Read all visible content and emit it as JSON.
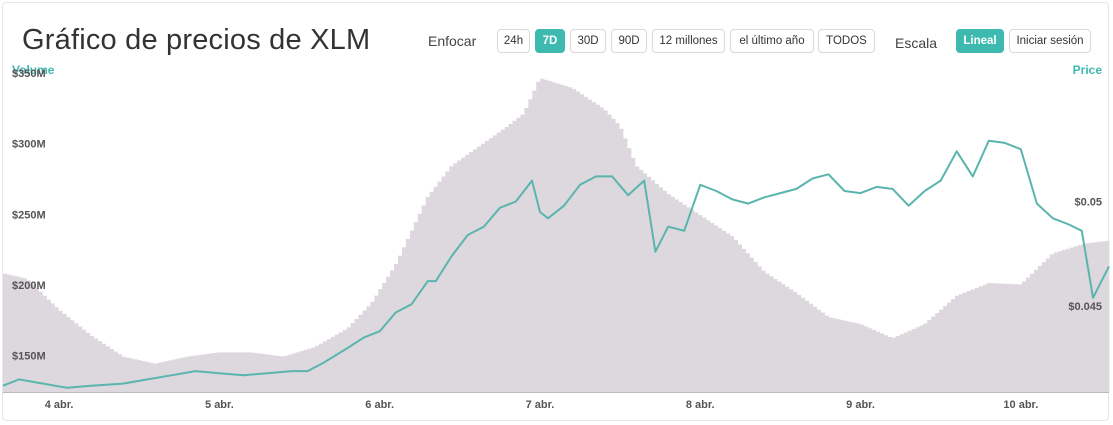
{
  "header": {
    "title": "Gráfico de precios de XLM",
    "zoom_label": "Enfocar",
    "zoom_options": [
      "24h",
      "7D",
      "30D",
      "90D",
      "12 millones",
      "el último año",
      "TODOS"
    ],
    "zoom_active": "7D",
    "scale_label": "Escala",
    "scale_options": [
      "Lineal",
      "Iniciar sesión"
    ],
    "scale_active": "Lineal"
  },
  "colors": {
    "accent": "#3db9b0",
    "volume": "#ddd7de",
    "line": "#5ab5ad"
  },
  "chart_data": {
    "type": "line",
    "left_axis_title": "Volume",
    "right_axis_title": "Price",
    "x_ticks": [
      "4 abr.",
      "5 abr.",
      "6 abr.",
      "7 abr.",
      "8 abr.",
      "9 abr.",
      "10 abr."
    ],
    "xlim": [
      3.65,
      10.55
    ],
    "y_left": {
      "ylim": [
        130,
        352
      ],
      "ticks": [
        150,
        200,
        250,
        300,
        350
      ],
      "tick_labels": [
        "$150M",
        "$200M",
        "$250M",
        "$300M",
        "$350M"
      ]
    },
    "y_right": {
      "ylim": [
        0.0409,
        0.0559
      ],
      "ticks": [
        0.045,
        0.05
      ],
      "tick_labels": [
        "$0.045",
        "$0.05"
      ]
    },
    "series": [
      {
        "name": "Volume",
        "type": "bar",
        "x": [
          3.65,
          3.8,
          4.0,
          4.2,
          4.4,
          4.6,
          4.8,
          5.0,
          5.2,
          5.4,
          5.6,
          5.8,
          5.95,
          6.1,
          6.3,
          6.45,
          6.6,
          6.8,
          6.9,
          7.0,
          7.2,
          7.4,
          7.5,
          7.6,
          7.8,
          8.0,
          8.2,
          8.4,
          8.6,
          8.8,
          9.0,
          9.2,
          9.4,
          9.6,
          9.8,
          10.0,
          10.2,
          10.4,
          10.55
        ],
        "values": [
          214,
          210,
          188,
          170,
          155,
          150,
          155,
          158,
          158,
          155,
          162,
          175,
          193,
          220,
          268,
          290,
          302,
          318,
          327,
          352,
          345,
          330,
          318,
          290,
          270,
          255,
          240,
          215,
          200,
          183,
          178,
          168,
          178,
          198,
          207,
          206,
          228,
          235,
          237
        ]
      },
      {
        "name": "Price",
        "type": "line",
        "x": [
          3.65,
          3.75,
          3.9,
          4.05,
          4.2,
          4.4,
          4.55,
          4.7,
          4.85,
          5.0,
          5.15,
          5.3,
          5.45,
          5.55,
          5.65,
          5.8,
          5.9,
          6.0,
          6.1,
          6.2,
          6.3,
          6.35,
          6.45,
          6.55,
          6.65,
          6.75,
          6.85,
          6.95,
          7.0,
          7.05,
          7.15,
          7.25,
          7.35,
          7.45,
          7.55,
          7.65,
          7.72,
          7.8,
          7.9,
          8.0,
          8.1,
          8.2,
          8.3,
          8.4,
          8.5,
          8.6,
          8.7,
          8.8,
          8.9,
          9.0,
          9.1,
          9.2,
          9.3,
          9.4,
          9.5,
          9.6,
          9.7,
          9.8,
          9.9,
          10.0,
          10.1,
          10.2,
          10.3,
          10.38,
          10.45,
          10.55
        ],
        "values": [
          0.0412,
          0.0415,
          0.0413,
          0.0411,
          0.0412,
          0.0413,
          0.0415,
          0.0417,
          0.0419,
          0.0418,
          0.0417,
          0.0418,
          0.0419,
          0.0419,
          0.0423,
          0.043,
          0.0435,
          0.0438,
          0.0447,
          0.0451,
          0.0462,
          0.0462,
          0.0474,
          0.0484,
          0.0488,
          0.0497,
          0.05,
          0.051,
          0.0495,
          0.0492,
          0.0498,
          0.0508,
          0.0512,
          0.0512,
          0.0503,
          0.051,
          0.0476,
          0.0488,
          0.0486,
          0.0508,
          0.0505,
          0.0501,
          0.0499,
          0.0502,
          0.0504,
          0.0506,
          0.0511,
          0.0513,
          0.0505,
          0.0504,
          0.0507,
          0.0506,
          0.0498,
          0.0505,
          0.051,
          0.0524,
          0.0512,
          0.0529,
          0.0528,
          0.0525,
          0.0499,
          0.0492,
          0.0489,
          0.0486,
          0.0454,
          0.0469
        ]
      }
    ],
    "grid": false
  }
}
